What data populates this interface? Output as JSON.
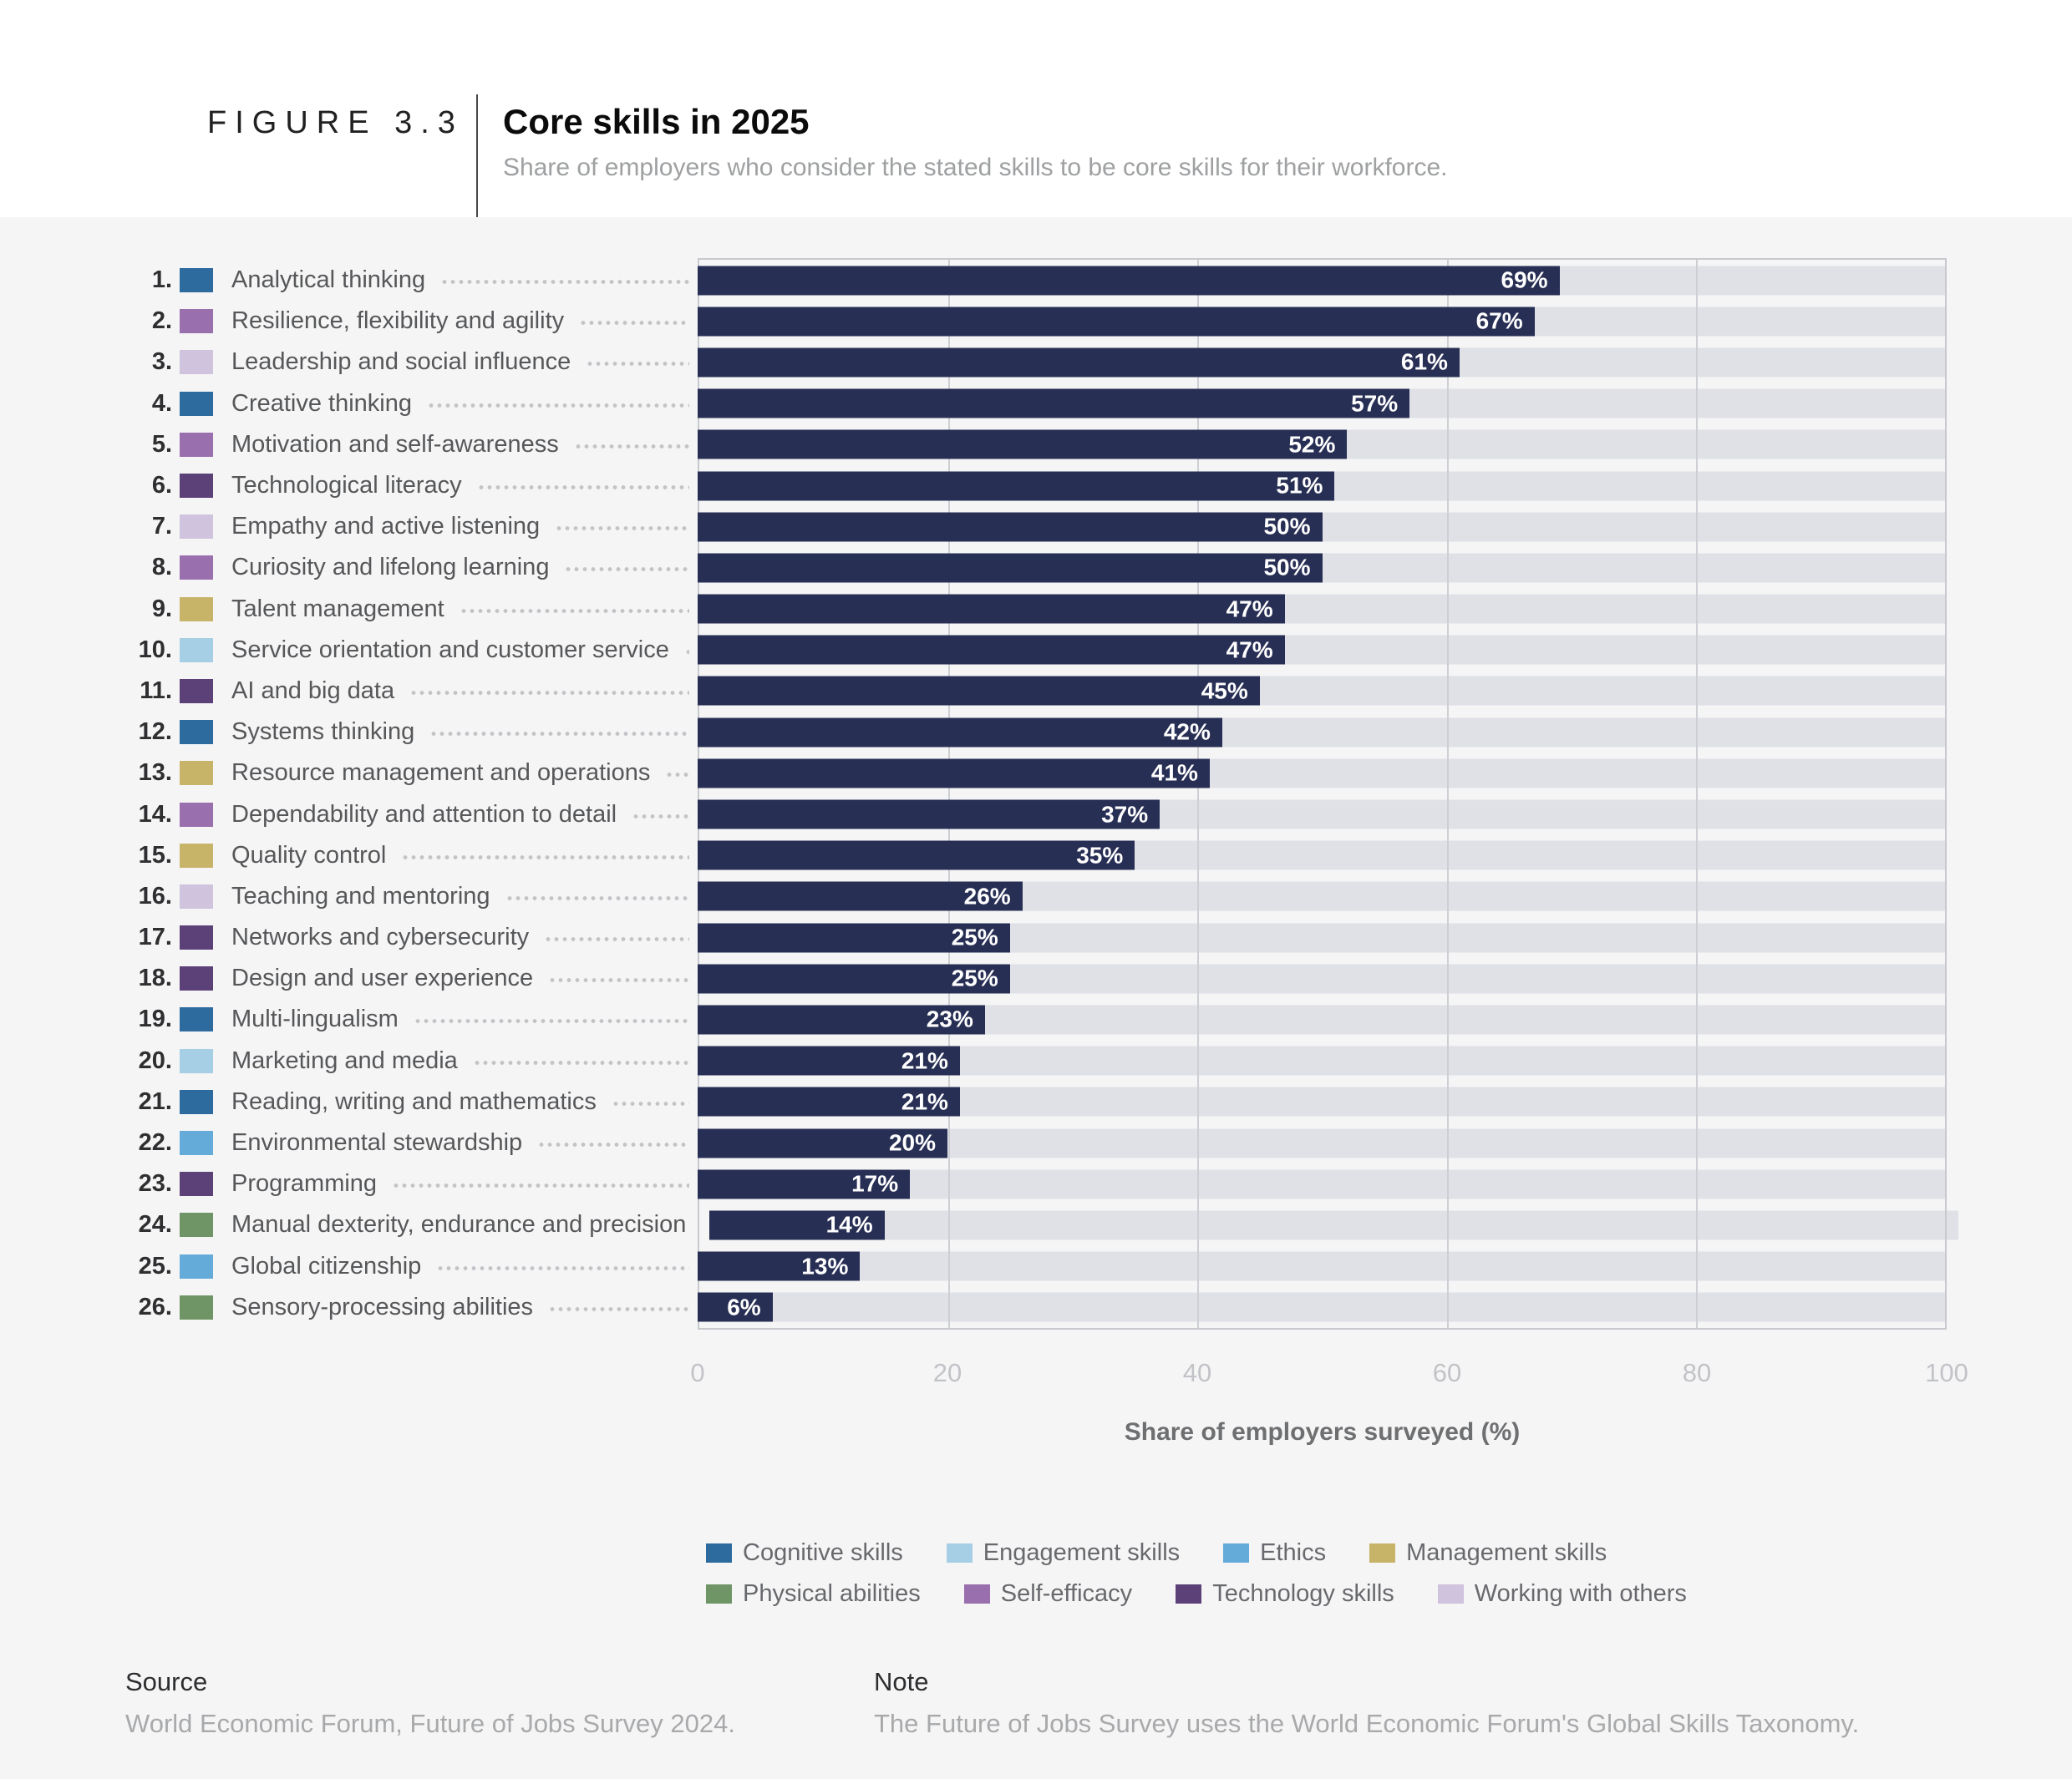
{
  "figure": {
    "label": "FIGURE 3.3",
    "title": "Core skills in 2025",
    "subtitle": "Share of employers who consider the stated skills to be core skills for their workforce."
  },
  "chart_data": {
    "type": "bar",
    "orientation": "horizontal",
    "title": "Core skills in 2025",
    "xlabel": "Share of employers surveyed (%)",
    "xlim": [
      0,
      100
    ],
    "x_ticks": [
      0,
      20,
      40,
      60,
      80,
      100
    ],
    "grid": true,
    "bar_color": "#282f54",
    "track_color": "#e0e1e6",
    "value_suffix": "%",
    "categories": [
      "Analytical thinking",
      "Resilience, flexibility and agility",
      "Leadership and social influence",
      "Creative thinking",
      "Motivation and self-awareness",
      "Technological literacy",
      "Empathy and active listening",
      "Curiosity and lifelong learning",
      "Talent management",
      "Service orientation and customer service",
      "AI and big data",
      "Systems thinking",
      "Resource management and operations",
      "Dependability and attention to detail",
      "Quality control",
      "Teaching and mentoring",
      "Networks and cybersecurity",
      "Design and user experience",
      "Multi-lingualism",
      "Marketing and media",
      "Reading, writing and mathematics",
      "Environmental stewardship",
      "Programming",
      "Manual dexterity, endurance and precision",
      "Global citizenship",
      "Sensory-processing abilities"
    ],
    "values": [
      69,
      67,
      61,
      57,
      52,
      51,
      50,
      50,
      47,
      47,
      45,
      42,
      41,
      37,
      35,
      26,
      25,
      25,
      23,
      21,
      21,
      20,
      17,
      14,
      13,
      6
    ],
    "skills": [
      {
        "rank": 1,
        "label": "Analytical thinking",
        "category": "cognitive",
        "value": 69
      },
      {
        "rank": 2,
        "label": "Resilience, flexibility and agility",
        "category": "self_efficacy",
        "value": 67
      },
      {
        "rank": 3,
        "label": "Leadership and social influence",
        "category": "working_with_others",
        "value": 61
      },
      {
        "rank": 4,
        "label": "Creative thinking",
        "category": "cognitive",
        "value": 57
      },
      {
        "rank": 5,
        "label": "Motivation and self-awareness",
        "category": "self_efficacy",
        "value": 52
      },
      {
        "rank": 6,
        "label": "Technological literacy",
        "category": "technology",
        "value": 51
      },
      {
        "rank": 7,
        "label": "Empathy and active listening",
        "category": "working_with_others",
        "value": 50
      },
      {
        "rank": 8,
        "label": "Curiosity and lifelong learning",
        "category": "self_efficacy",
        "value": 50
      },
      {
        "rank": 9,
        "label": "Talent management",
        "category": "management",
        "value": 47
      },
      {
        "rank": 10,
        "label": "Service orientation and customer service",
        "category": "engagement",
        "value": 47
      },
      {
        "rank": 11,
        "label": "AI and big data",
        "category": "technology",
        "value": 45
      },
      {
        "rank": 12,
        "label": "Systems thinking",
        "category": "cognitive",
        "value": 42
      },
      {
        "rank": 13,
        "label": "Resource management and operations",
        "category": "management",
        "value": 41
      },
      {
        "rank": 14,
        "label": "Dependability and attention to detail",
        "category": "self_efficacy",
        "value": 37
      },
      {
        "rank": 15,
        "label": "Quality control",
        "category": "management",
        "value": 35
      },
      {
        "rank": 16,
        "label": "Teaching and mentoring",
        "category": "working_with_others",
        "value": 26
      },
      {
        "rank": 17,
        "label": "Networks and cybersecurity",
        "category": "technology",
        "value": 25
      },
      {
        "rank": 18,
        "label": "Design and user experience",
        "category": "technology",
        "value": 25
      },
      {
        "rank": 19,
        "label": "Multi-lingualism",
        "category": "cognitive",
        "value": 23
      },
      {
        "rank": 20,
        "label": "Marketing and media",
        "category": "engagement",
        "value": 21
      },
      {
        "rank": 21,
        "label": "Reading, writing and mathematics",
        "category": "cognitive",
        "value": 21
      },
      {
        "rank": 22,
        "label": "Environmental stewardship",
        "category": "ethics",
        "value": 20
      },
      {
        "rank": 23,
        "label": "Programming",
        "category": "technology",
        "value": 17
      },
      {
        "rank": 24,
        "label": "Manual dexterity, endurance and precision",
        "category": "physical",
        "value": 14
      },
      {
        "rank": 25,
        "label": "Global citizenship",
        "category": "ethics",
        "value": 13
      },
      {
        "rank": 26,
        "label": "Sensory-processing abilities",
        "category": "physical",
        "value": 6
      }
    ],
    "category_colors": {
      "cognitive": {
        "label": "Cognitive skills",
        "color": "#2d6b9f"
      },
      "engagement": {
        "label": "Engagement skills",
        "color": "#a6cee4"
      },
      "ethics": {
        "label": "Ethics",
        "color": "#64abd9"
      },
      "management": {
        "label": "Management skills",
        "color": "#c8b468"
      },
      "physical": {
        "label": "Physical abilities",
        "color": "#6f9566"
      },
      "self_efficacy": {
        "label": "Self-efficacy",
        "color": "#9a6fae"
      },
      "technology": {
        "label": "Technology skills",
        "color": "#5c4178"
      },
      "working_with_others": {
        "label": "Working with others",
        "color": "#cfc3dd"
      }
    },
    "legend_position": "bottom"
  },
  "legend": {
    "rows": [
      [
        "cognitive",
        "engagement",
        "ethics",
        "management"
      ],
      [
        "physical",
        "self_efficacy",
        "technology",
        "working_with_others"
      ]
    ]
  },
  "source": {
    "heading": "Source",
    "text": "World Economic Forum, Future of Jobs Survey 2024."
  },
  "note": {
    "heading": "Note",
    "text": "The Future of Jobs Survey uses the World Economic Forum's Global Skills Taxonomy."
  }
}
